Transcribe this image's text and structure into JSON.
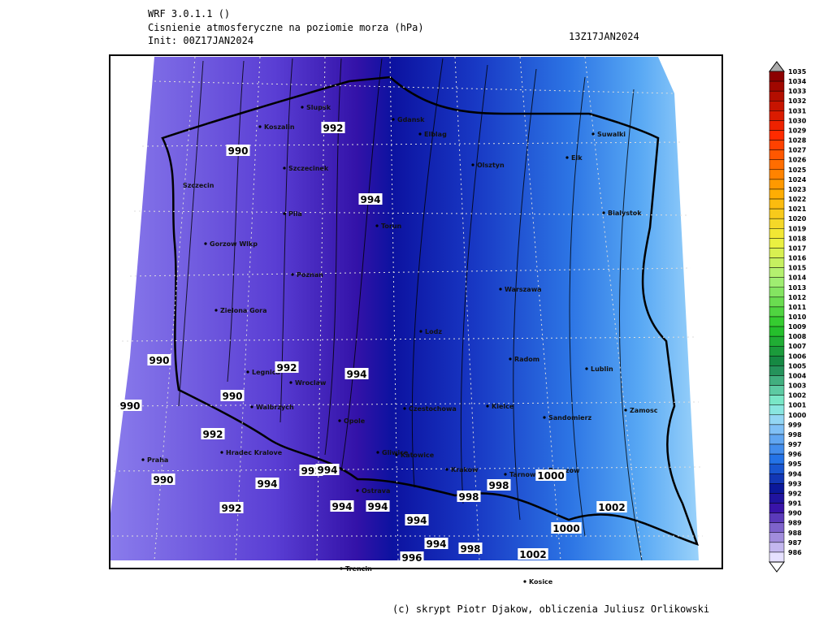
{
  "header": {
    "model": "WRF 3.0.1.1 ()",
    "field": "Cisnienie atmosferyczne na poziomie morza (hPa)",
    "init": "Init: 00Z17JAN2024",
    "valid": "13Z17JAN2024"
  },
  "cities": [
    "Slupsk",
    "Koszalin",
    "Gdansk",
    "Elblag",
    "Suwalki",
    "Olsztyn",
    "Elk",
    "Szczecinek",
    "Szczecin",
    "Pila",
    "Torun",
    "Bialystok",
    "Gorzow Wlkp",
    "Poznan",
    "Warszawa",
    "Zielona Gora",
    "Lodz",
    "Radom",
    "Lublin",
    "Legnica",
    "Wroclaw",
    "Walbrzych",
    "Kielce",
    "Czestochowa",
    "Zamosc",
    "Sandomierz",
    "Opole",
    "Hradec Kralove",
    "Gliwice",
    "Katowice",
    "Praha",
    "Krakow",
    "Tarnow",
    "Rzeszow",
    "Ostrava",
    "Trencin",
    "Kosice"
  ],
  "contour_labels": [
    "992",
    "990",
    "994",
    "990",
    "992",
    "994",
    "990",
    "990",
    "992",
    "992",
    "994",
    "994",
    "998",
    "1000",
    "990",
    "992",
    "994",
    "994",
    "998",
    "994",
    "1002",
    "1000",
    "998",
    "994",
    "1002",
    "996"
  ],
  "colorbar": {
    "labels": [
      "1035",
      "1034",
      "1033",
      "1032",
      "1031",
      "1030",
      "1029",
      "1028",
      "1027",
      "1026",
      "1025",
      "1024",
      "1023",
      "1022",
      "1021",
      "1020",
      "1019",
      "1018",
      "1017",
      "1016",
      "1015",
      "1014",
      "1013",
      "1012",
      "1011",
      "1010",
      "1009",
      "1008",
      "1007",
      "1006",
      "1005",
      "1004",
      "1003",
      "1002",
      "1001",
      "1000",
      "999",
      "998",
      "997",
      "996",
      "995",
      "994",
      "993",
      "992",
      "991",
      "990",
      "989",
      "988",
      "987",
      "986"
    ]
  },
  "footer": "(c) skrypt Piotr Djakow, obliczenia Juliusz Orlikowski"
}
